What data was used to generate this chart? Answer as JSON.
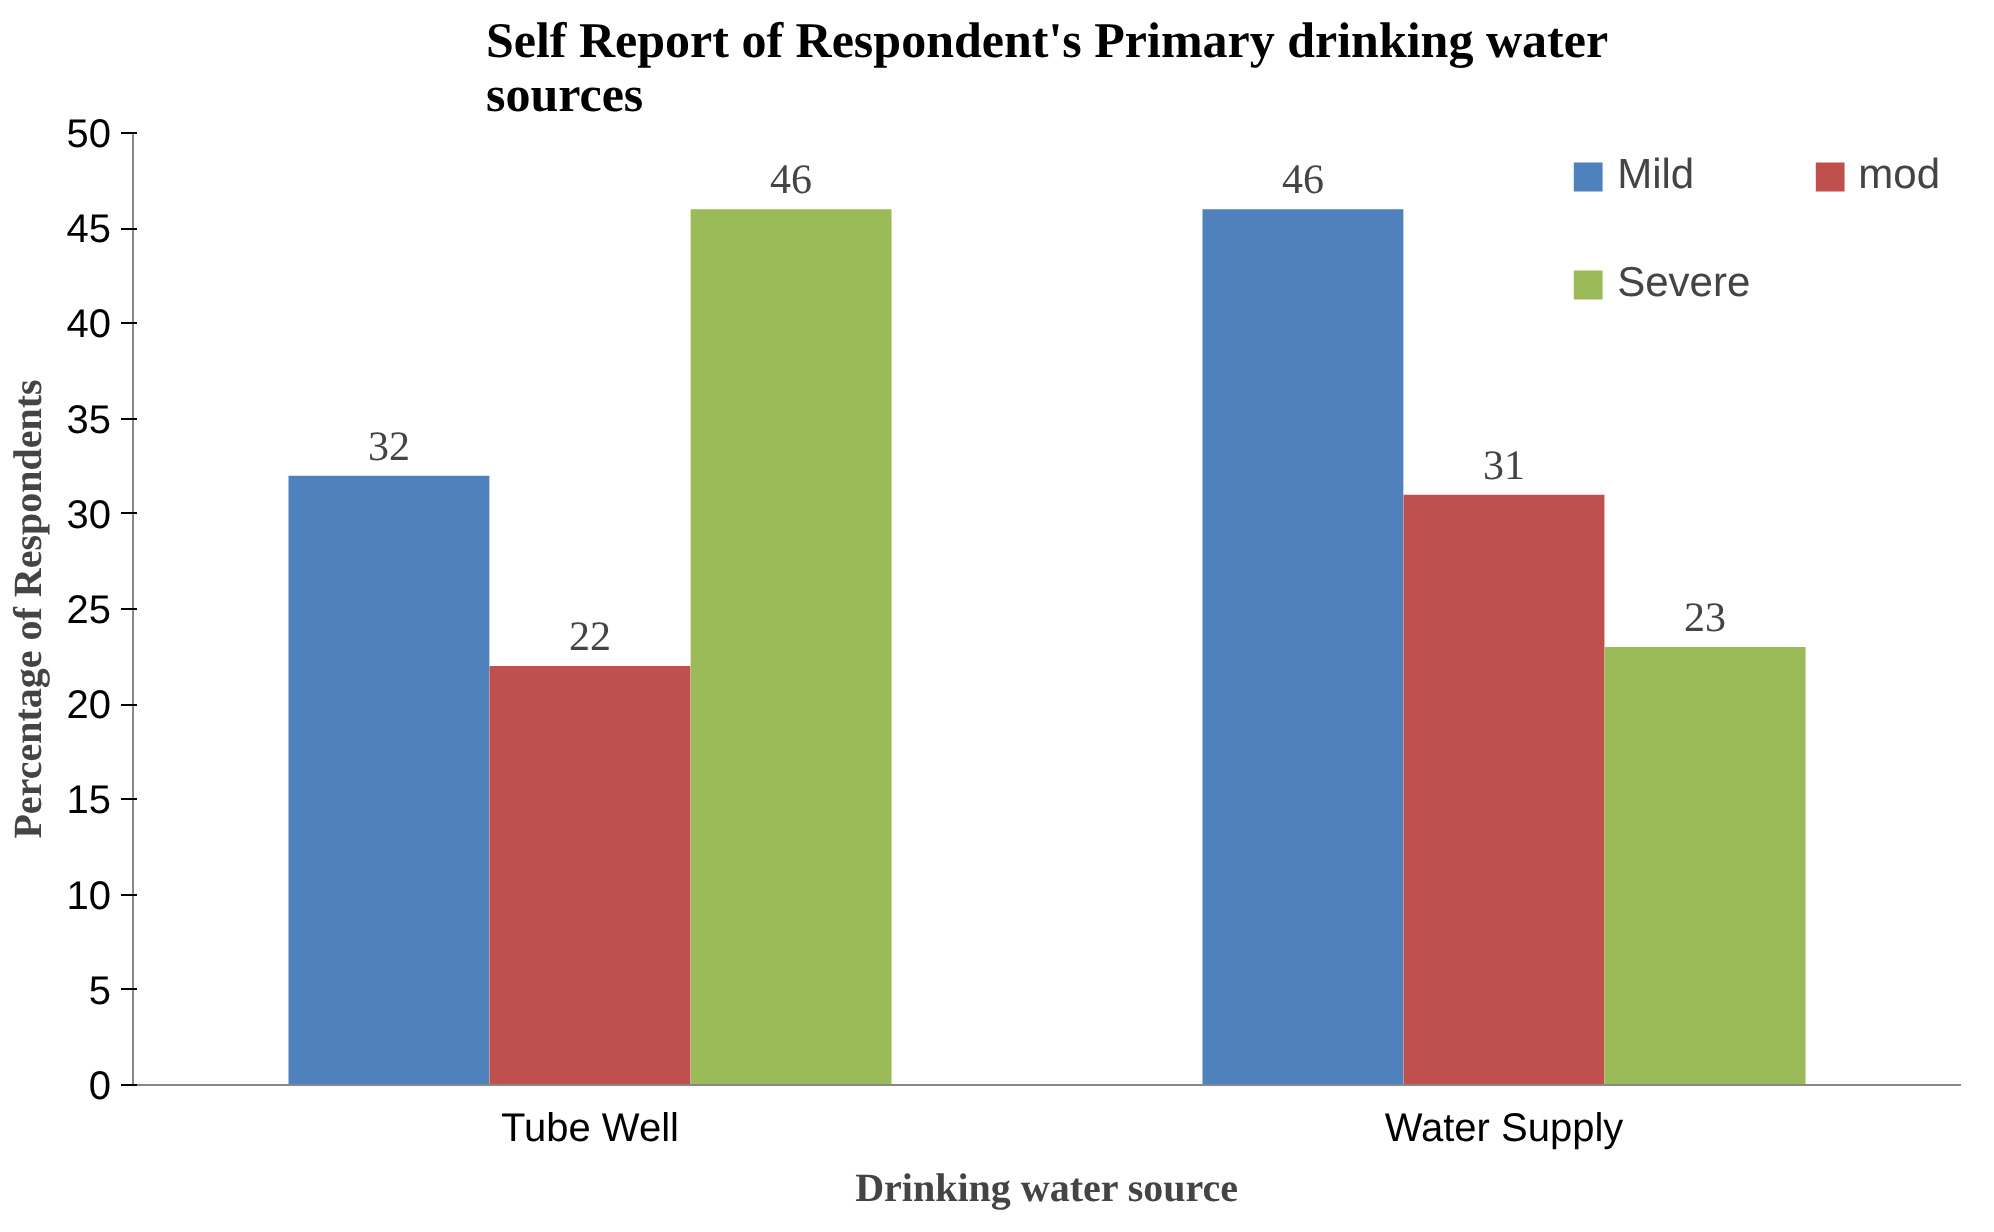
{
  "chart_data": {
    "type": "bar",
    "title": "Self Report of Respondent's Primary drinking water sources",
    "xlabel": "Drinking water source",
    "ylabel": "Percentage of Respondents",
    "categories": [
      "Tube Well",
      "Water Supply"
    ],
    "series": [
      {
        "name": "Mild",
        "color": "#4f81bd",
        "values": [
          32,
          46
        ]
      },
      {
        "name": "mod",
        "color": "#c0504d",
        "values": [
          22,
          31
        ]
      },
      {
        "name": "Severe",
        "color": "#9bbb59",
        "values": [
          46,
          23
        ]
      }
    ],
    "ylim": [
      0,
      50
    ],
    "yticks": [
      0,
      5,
      10,
      15,
      20,
      25,
      30,
      35,
      40,
      45,
      50
    ],
    "data_labels": true,
    "legend": "top right",
    "grid": false
  }
}
